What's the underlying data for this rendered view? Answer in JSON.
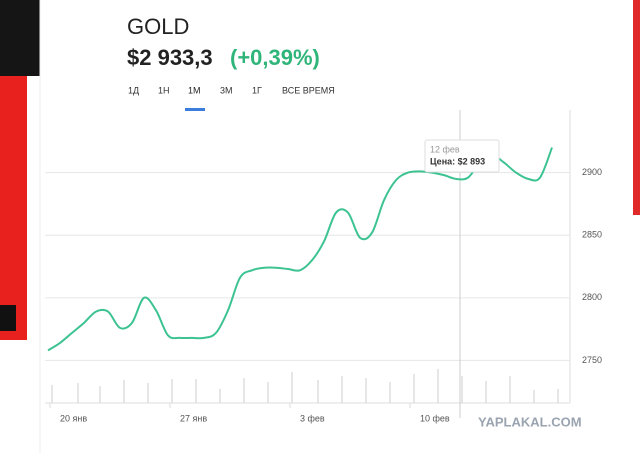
{
  "header": {
    "title": "GOLD",
    "price": "$2 933,3",
    "change": "(+0,39%)"
  },
  "tabs": [
    "1Д",
    "1Н",
    "1М",
    "3М",
    "1Г",
    "ВСЕ ВРЕМЯ"
  ],
  "chart_data": {
    "type": "line",
    "categories": [
      null,
      "20 янв",
      null,
      null,
      null,
      null,
      null,
      null,
      null,
      null,
      null,
      "27 янв",
      null,
      null,
      null,
      null,
      null,
      null,
      null,
      null,
      null,
      "3 фев",
      null,
      null,
      null,
      null,
      null,
      null,
      null,
      null,
      null,
      "10 фев",
      null,
      null,
      null,
      null,
      null,
      null,
      null,
      null,
      null,
      null,
      null
    ],
    "values": [
      2758,
      2764,
      2772,
      2780,
      2789,
      2789,
      2776,
      2780,
      2800,
      2790,
      2770,
      2768,
      2768,
      2768,
      2772,
      2790,
      2816,
      2822,
      2824,
      2824,
      2823,
      2822,
      2830,
      2845,
      2868,
      2868,
      2848,
      2852,
      2878,
      2894,
      2900,
      2901,
      2900,
      2898,
      2895,
      2896,
      2908,
      2914,
      2908,
      2900,
      2895,
      2896,
      2920
    ],
    "color": "#3cc391",
    "ylim": [
      2716,
      2950
    ],
    "yticks": [
      2750,
      2800,
      2850,
      2900
    ],
    "grid": true,
    "tooltip": {
      "date": "12 фев",
      "text": "Цена: $2 893"
    }
  },
  "watermark": "YAPLAKAL.COM"
}
